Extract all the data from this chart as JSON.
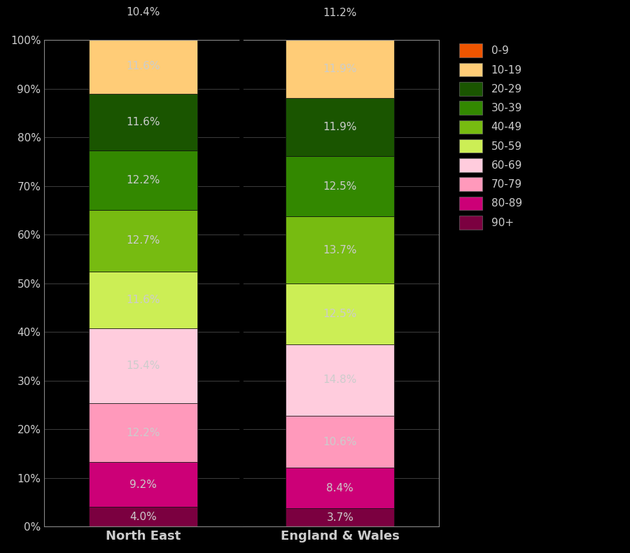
{
  "categories": [
    "North East",
    "England & Wales"
  ],
  "segments_bottom_to_top": [
    {
      "label": "90+",
      "ne": 4.0,
      "ew": 3.7,
      "color": "#7B0040"
    },
    {
      "label": "80-89",
      "ne": 9.2,
      "ew": 8.4,
      "color": "#CC0077"
    },
    {
      "label": "70-79",
      "ne": 12.2,
      "ew": 10.6,
      "color": "#FF99BB"
    },
    {
      "label": "60-69",
      "ne": 15.4,
      "ew": 14.8,
      "color": "#FFCCDD"
    },
    {
      "label": "50-59",
      "ne": 11.6,
      "ew": 12.5,
      "color": "#CCEE55"
    },
    {
      "label": "40-49",
      "ne": 12.7,
      "ew": 13.7,
      "color": "#77BB11"
    },
    {
      "label": "30-39",
      "ne": 12.2,
      "ew": 12.5,
      "color": "#338800"
    },
    {
      "label": "20-29",
      "ne": 11.6,
      "ew": 11.9,
      "color": "#1A5500"
    },
    {
      "label": "10-19",
      "ne": 11.6,
      "ew": 11.9,
      "color": "#FFCC77"
    },
    {
      "label": "0-9",
      "ne": 10.4,
      "ew": 11.2,
      "color": "#EE5500"
    }
  ],
  "legend_order": [
    "0-9",
    "10-19",
    "20-29",
    "30-39",
    "40-49",
    "50-59",
    "60-69",
    "70-79",
    "80-89",
    "90+"
  ],
  "background_color": "#000000",
  "text_color": "#CCCCCC",
  "bar_edge_color": "#111111",
  "ylim": [
    0,
    100
  ],
  "yticks": [
    0,
    10,
    20,
    30,
    40,
    50,
    60,
    70,
    80,
    90,
    100
  ],
  "ytick_labels": [
    "0%",
    "10%",
    "20%",
    "30%",
    "40%",
    "50%",
    "60%",
    "70%",
    "80%",
    "90%",
    "100%"
  ],
  "label_fontsize": 11,
  "tick_fontsize": 11,
  "legend_fontsize": 11,
  "bar_width": 0.55
}
